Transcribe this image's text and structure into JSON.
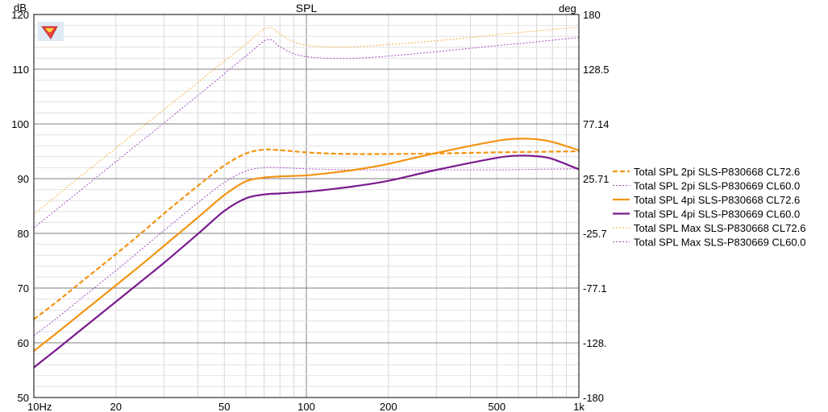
{
  "chart_data": {
    "type": "line",
    "title": "SPL",
    "ylabel_left": "dB",
    "ylabel_right": "deg",
    "x_scale": "log",
    "xlim": [
      10,
      1000
    ],
    "ylim_left": [
      50,
      120
    ],
    "ylim_right": [
      -180,
      180
    ],
    "x_tick_labels": [
      {
        "value": 10,
        "label": "10Hz"
      },
      {
        "value": 20,
        "label": "20"
      },
      {
        "value": 50,
        "label": "50"
      },
      {
        "value": 100,
        "label": "100"
      },
      {
        "value": 200,
        "label": "200"
      },
      {
        "value": 500,
        "label": "500"
      },
      {
        "value": 1000,
        "label": "1k"
      }
    ],
    "y_left_ticks": [
      "50",
      "60",
      "70",
      "80",
      "90",
      "100",
      "110",
      "120"
    ],
    "y_right_ticks": [
      "-180",
      "-128.",
      "-77.1",
      "-25.7",
      "25.71",
      "77.14",
      "128.5",
      "180"
    ],
    "grid": true,
    "legend_placement": "right",
    "series": [
      {
        "name": "Total SPL 2pi SLS-P830668 CL72.6",
        "color": "#f29412",
        "dash": "dashed",
        "width": "thick",
        "x": [
          10,
          12,
          15,
          20,
          25,
          30,
          40,
          50,
          60,
          70,
          80,
          100,
          120,
          150,
          200,
          300,
          500,
          700,
          1000
        ],
        "y": [
          64.3,
          67.3,
          71.2,
          76.2,
          80.2,
          83.6,
          88.7,
          92.4,
          94.6,
          95.3,
          95.2,
          94.8,
          94.6,
          94.5,
          94.5,
          94.6,
          94.8,
          94.9,
          95.0
        ]
      },
      {
        "name": "Total SPL 2pi SLS-P830669 CL60.0",
        "color": "#a24cc0",
        "dash": "dotted",
        "width": "thin",
        "x": [
          10,
          12,
          15,
          20,
          25,
          30,
          40,
          50,
          60,
          70,
          80,
          100,
          120,
          150,
          200,
          300,
          500,
          700,
          1000
        ],
        "y": [
          61.3,
          64.3,
          68.2,
          73.2,
          77.2,
          80.5,
          85.6,
          89.3,
          91.4,
          92.0,
          92.0,
          91.8,
          91.7,
          91.6,
          91.6,
          91.6,
          91.6,
          91.7,
          91.8
        ]
      },
      {
        "name": "Total SPL 4pi SLS-P830668 CL72.6",
        "color": "#f29412",
        "dash": "solid",
        "width": "thick",
        "x": [
          10,
          12,
          15,
          20,
          25,
          30,
          40,
          50,
          60,
          70,
          80,
          100,
          120,
          150,
          200,
          300,
          500,
          600,
          700,
          800,
          1000
        ],
        "y": [
          58.5,
          61.6,
          65.5,
          70.5,
          74.4,
          77.7,
          82.9,
          87.0,
          89.5,
          90.2,
          90.4,
          90.6,
          91.0,
          91.6,
          92.7,
          94.7,
          96.9,
          97.3,
          97.2,
          96.7,
          95.2
        ]
      },
      {
        "name": "Total SPL 4pi SLS-P830669 CL60.0",
        "color": "#7a1a8e",
        "dash": "solid",
        "width": "thick",
        "x": [
          10,
          12,
          15,
          20,
          25,
          30,
          40,
          50,
          60,
          70,
          80,
          100,
          120,
          150,
          200,
          300,
          500,
          600,
          700,
          800,
          1000
        ],
        "y": [
          55.5,
          58.6,
          62.5,
          67.5,
          71.4,
          74.6,
          79.9,
          84.1,
          86.4,
          87.1,
          87.3,
          87.6,
          88.0,
          88.6,
          89.6,
          91.6,
          93.8,
          94.2,
          94.1,
          93.6,
          91.7
        ]
      },
      {
        "name": "Total SPL Max SLS-P830668 CL72.6",
        "color": "#f5b04a",
        "dash": "dotted",
        "width": "thin",
        "x": [
          10,
          20,
          40,
          60,
          72,
          80,
          90,
          100,
          120,
          150,
          200,
          300,
          500,
          700,
          1000
        ],
        "y": [
          83.5,
          95.6,
          107.6,
          114.6,
          117.6,
          116.4,
          115.0,
          114.4,
          114.1,
          114.1,
          114.5,
          115.2,
          116.3,
          117.0,
          117.7
        ]
      },
      {
        "name": "Total SPL Max SLS-P830669 CL60.0",
        "color": "#a24cc0",
        "dash": "dotted",
        "width": "thin",
        "x": [
          10,
          20,
          40,
          60,
          72,
          80,
          90,
          100,
          120,
          150,
          200,
          300,
          500,
          700,
          1000
        ],
        "y": [
          81.0,
          93.1,
          105.2,
          112.4,
          115.4,
          114.1,
          112.8,
          112.3,
          112.0,
          112.0,
          112.4,
          113.2,
          114.3,
          115.0,
          115.8
        ]
      }
    ]
  }
}
